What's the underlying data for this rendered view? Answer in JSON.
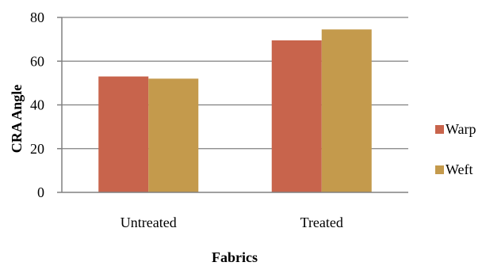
{
  "chart_data": {
    "type": "bar",
    "title": "",
    "xlabel": "Fabrics",
    "ylabel": "CRA Angle",
    "categories": [
      "Untreated",
      "Treated"
    ],
    "series": [
      {
        "name": "Warp",
        "values": [
          53,
          69.5
        ],
        "color": "#C8644C"
      },
      {
        "name": "Weft",
        "values": [
          52,
          74.5
        ],
        "color": "#C49A4C"
      }
    ],
    "ylim": [
      0,
      80
    ],
    "yticks": [
      0,
      20,
      40,
      60,
      80
    ],
    "grid": true,
    "legend": "right"
  }
}
